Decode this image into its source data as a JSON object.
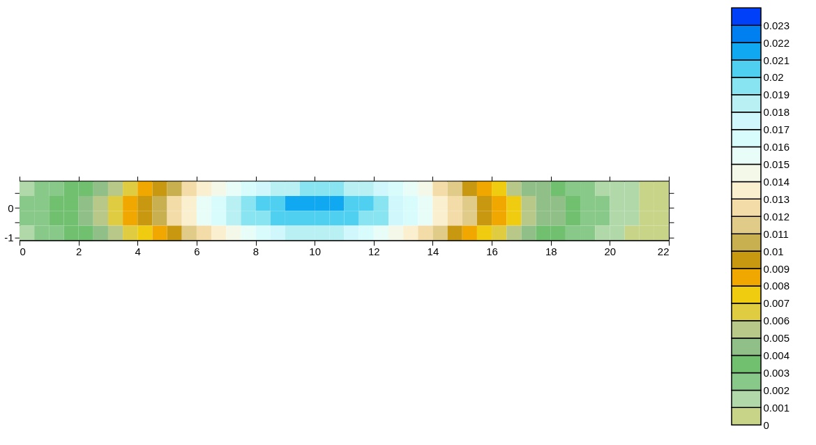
{
  "chart_data": {
    "type": "heatmap",
    "x": [
      0.25,
      0.75,
      1.25,
      1.75,
      2.25,
      2.75,
      3.25,
      3.75,
      4.25,
      4.75,
      5.25,
      5.75,
      6.25,
      6.75,
      7.25,
      7.75,
      8.25,
      8.75,
      9.25,
      9.75,
      10.25,
      10.75,
      11.25,
      11.75,
      12.25,
      12.75,
      13.25,
      13.75,
      14.25,
      14.75,
      15.25,
      15.75,
      16.25,
      16.75,
      17.25,
      17.75,
      18.25,
      18.75,
      19.25,
      19.75,
      20.25,
      20.75,
      21.25,
      21.75
    ],
    "y": [
      0.65,
      0.15,
      -0.35,
      -0.85
    ],
    "cells": [
      [
        0.0015,
        0.0025,
        0.0025,
        0.0035,
        0.0035,
        0.0045,
        0.0055,
        0.0065,
        0.0085,
        0.0095,
        0.0105,
        0.0125,
        0.0135,
        0.0145,
        0.0155,
        0.0165,
        0.0175,
        0.0185,
        0.0185,
        0.0195,
        0.0195,
        0.0195,
        0.0185,
        0.0185,
        0.0175,
        0.0165,
        0.0155,
        0.0145,
        0.0125,
        0.0115,
        0.0095,
        0.0085,
        0.0075,
        0.0055,
        0.0045,
        0.0045,
        0.0035,
        0.0025,
        0.0025,
        0.0015,
        0.0015,
        0.0015,
        0.0005,
        0.0005
      ],
      [
        0.0025,
        0.0025,
        0.0035,
        0.0035,
        0.0045,
        0.0055,
        0.0065,
        0.0085,
        0.0095,
        0.0105,
        0.0125,
        0.0135,
        0.0155,
        0.0165,
        0.0185,
        0.0195,
        0.0205,
        0.0205,
        0.0215,
        0.0215,
        0.0215,
        0.0215,
        0.0205,
        0.0205,
        0.0195,
        0.0175,
        0.0165,
        0.0155,
        0.0135,
        0.0125,
        0.0115,
        0.0095,
        0.0085,
        0.0075,
        0.0055,
        0.0045,
        0.0045,
        0.0035,
        0.0025,
        0.0025,
        0.0015,
        0.0015,
        0.0005,
        0.0005
      ],
      [
        0.0025,
        0.0025,
        0.0035,
        0.0035,
        0.0045,
        0.0055,
        0.0065,
        0.0085,
        0.0095,
        0.0105,
        0.0125,
        0.0135,
        0.0155,
        0.0165,
        0.0185,
        0.0195,
        0.0195,
        0.0205,
        0.0205,
        0.0205,
        0.0205,
        0.0205,
        0.0205,
        0.0195,
        0.0195,
        0.0175,
        0.0165,
        0.0155,
        0.0135,
        0.0125,
        0.0115,
        0.0095,
        0.0085,
        0.0075,
        0.0055,
        0.0045,
        0.0045,
        0.0035,
        0.0025,
        0.0025,
        0.0015,
        0.0015,
        0.0005,
        0.0005
      ],
      [
        0.0015,
        0.0025,
        0.0025,
        0.0035,
        0.0035,
        0.0045,
        0.0055,
        0.0065,
        0.0075,
        0.0085,
        0.0095,
        0.0115,
        0.0125,
        0.0135,
        0.0145,
        0.0155,
        0.0165,
        0.0175,
        0.0185,
        0.0185,
        0.0185,
        0.0185,
        0.0175,
        0.0165,
        0.0155,
        0.0145,
        0.0135,
        0.0125,
        0.0115,
        0.0095,
        0.0085,
        0.0075,
        0.0065,
        0.0055,
        0.0045,
        0.0035,
        0.0035,
        0.0025,
        0.0025,
        0.0015,
        0.0015,
        0.0005,
        0.0005,
        0.0005
      ]
    ],
    "xlim": [
      0,
      22
    ],
    "xticks": [
      0,
      2,
      4,
      6,
      8,
      10,
      12,
      14,
      16,
      18,
      20,
      22
    ],
    "ylim": [
      -1.1,
      0.9
    ],
    "yticks": [
      -1,
      {
        "value": -0.5,
        "label": null
      },
      0,
      {
        "value": 0.5,
        "label": null
      }
    ],
    "clim": [
      0,
      0.024
    ],
    "cticks": [
      0,
      0.001,
      0.002,
      0.003,
      0.004,
      0.005,
      0.006,
      0.007,
      0.008,
      0.009,
      0.01,
      0.011,
      0.012,
      0.013,
      0.014,
      0.015,
      0.016,
      0.017,
      0.018,
      0.019,
      0.02,
      0.021,
      0.022,
      0.023
    ],
    "colors": [
      "#c8d488",
      "#b0d8a8",
      "#88c888",
      "#70c070",
      "#90c088",
      "#b8c888",
      "#e0cc40",
      "#f0cc10",
      "#f0a800",
      "#c89810",
      "#c8b050",
      "#e0cc88",
      "#f4dca8",
      "#faf0d0",
      "#f4f8e8",
      "#e8fcf8",
      "#d8fcfc",
      "#d0f8fc",
      "#b8f0f4",
      "#88e4f0",
      "#50d0f0",
      "#10a8f0",
      "#0080f0",
      "#0040f8"
    ],
    "grid": false
  }
}
